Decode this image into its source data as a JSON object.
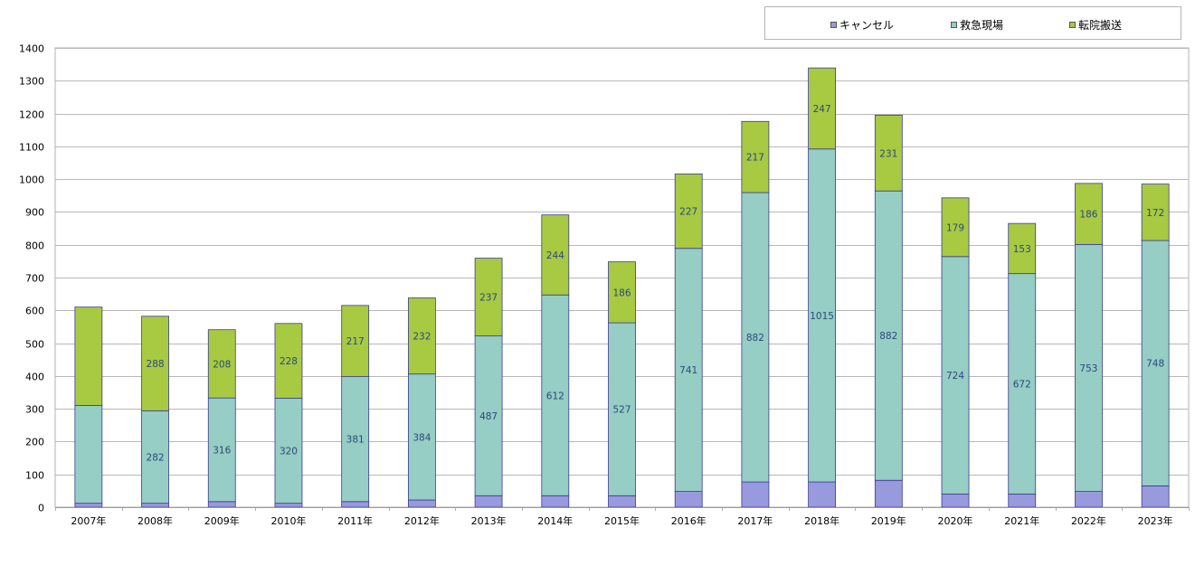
{
  "chart_data": {
    "type": "bar",
    "stacked": true,
    "title": "",
    "xlabel": "",
    "ylabel": "",
    "ylim": [
      0,
      1400
    ],
    "yticks": [
      0,
      100,
      200,
      300,
      400,
      500,
      600,
      700,
      800,
      900,
      1000,
      1100,
      1200,
      1300,
      1400
    ],
    "grid": true,
    "legend_position": "top-right",
    "categories": [
      "2007年",
      "2008年",
      "2009年",
      "2010年",
      "2011年",
      "2012年",
      "2013年",
      "2014年",
      "2015年",
      "2016年",
      "2017年",
      "2018年",
      "2019年",
      "2020年",
      "2021年",
      "2022年",
      "2023年"
    ],
    "series": [
      {
        "name": "キャンセル",
        "color": "#9999dd",
        "values": [
          12,
          12,
          17,
          12,
          17,
          22,
          35,
          35,
          35,
          48,
          77,
          77,
          82,
          40,
          40,
          48,
          65
        ],
        "labels": [
          "",
          "",
          "",
          "",
          "",
          "",
          "",
          "",
          "",
          "",
          "",
          "",
          "",
          "",
          "",
          "",
          ""
        ]
      },
      {
        "name": "救急現場",
        "color": "#96cdc4",
        "values": [
          298,
          282,
          316,
          320,
          381,
          384,
          487,
          612,
          527,
          741,
          882,
          1015,
          882,
          724,
          672,
          753,
          748
        ],
        "labels": [
          "",
          "282",
          "316",
          "320",
          "381",
          "384",
          "487",
          "612",
          "527",
          "741",
          "882",
          "1015",
          "882",
          "724",
          "672",
          "753",
          "748"
        ]
      },
      {
        "name": "転院搬送",
        "color": "#a8c942",
        "values": [
          300,
          288,
          208,
          228,
          217,
          232,
          237,
          244,
          186,
          227,
          217,
          247,
          231,
          179,
          153,
          186,
          172
        ],
        "labels": [
          "",
          "288",
          "208",
          "228",
          "217",
          "232",
          "237",
          "244",
          "186",
          "227",
          "217",
          "247",
          "231",
          "179",
          "153",
          "186",
          "172"
        ]
      }
    ]
  }
}
